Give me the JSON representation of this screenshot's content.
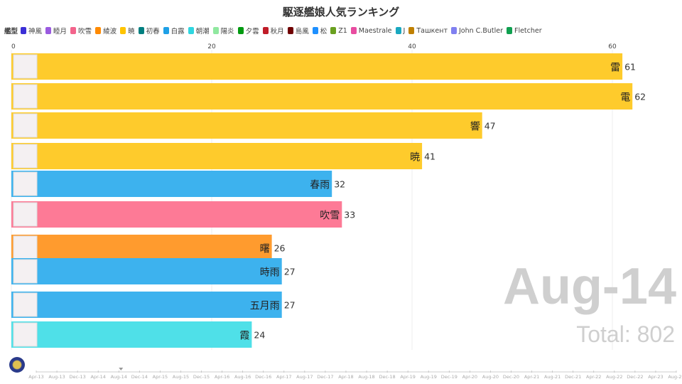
{
  "title": "駆逐艦娘人気ランキング",
  "legend_title": "艦型",
  "legend": [
    {
      "name": "神風",
      "color": "#3b2fd6"
    },
    {
      "name": "睦月",
      "color": "#9a5ae0"
    },
    {
      "name": "吹雪",
      "color": "#f3648c"
    },
    {
      "name": "綾波",
      "color": "#ff8a00"
    },
    {
      "name": "暁",
      "color": "#ffc400"
    },
    {
      "name": "初春",
      "color": "#007f80"
    },
    {
      "name": "白露",
      "color": "#1ea0e6"
    },
    {
      "name": "朝潮",
      "color": "#2fd6e0"
    },
    {
      "name": "陽炎",
      "color": "#90e8a0"
    },
    {
      "name": "夕雲",
      "color": "#009a10"
    },
    {
      "name": "秋月",
      "color": "#c01c28"
    },
    {
      "name": "島風",
      "color": "#700000"
    },
    {
      "name": "松",
      "color": "#1e90ff"
    },
    {
      "name": "Z1",
      "color": "#6aa020"
    },
    {
      "name": "Maestrale",
      "color": "#e84ca0"
    },
    {
      "name": "J",
      "color": "#1aa8c0"
    },
    {
      "name": "Ташкент",
      "color": "#c08000"
    },
    {
      "name": "John C.Butler",
      "color": "#8080f0"
    },
    {
      "name": "Fletcher",
      "color": "#10a050"
    }
  ],
  "date": "Aug-14",
  "total": "Total: 802",
  "timeline": [
    "Apr-13",
    "Aug-13",
    "Dec-13",
    "Apr-14",
    "Aug-14",
    "Dec-14",
    "Apr-15",
    "Aug-15",
    "Dec-15",
    "Apr-16",
    "Aug-16",
    "Dec-16",
    "Apr-17",
    "Aug-17",
    "Dec-17",
    "Apr-18",
    "Aug-18",
    "Dec-18",
    "Apr-19",
    "Aug-19",
    "Dec-19",
    "Apr-20",
    "Aug-20",
    "Dec-20",
    "Apr-21",
    "Aug-21",
    "Dec-21",
    "Apr-22",
    "Aug-22",
    "Dec-22",
    "Apr-23",
    "Aug-23"
  ],
  "chart_data": {
    "type": "bar",
    "orientation": "horizontal",
    "title": "駆逐艦娘人気ランキング",
    "xlim": [
      0,
      62
    ],
    "xticks": [
      0,
      20,
      40,
      60
    ],
    "grid": true,
    "legend_position": "top-left",
    "bars": [
      {
        "name": "雷",
        "value": 61,
        "class": "暁",
        "color": "#fecb2c"
      },
      {
        "name": "電",
        "value": 62,
        "class": "暁",
        "color": "#fecb2c"
      },
      {
        "name": "響",
        "value": 47,
        "class": "暁",
        "color": "#fecb2c"
      },
      {
        "name": "暁",
        "value": 41,
        "class": "暁",
        "color": "#fecb2c"
      },
      {
        "name": "春雨",
        "value": 32,
        "class": "白露",
        "color": "#3db2ee"
      },
      {
        "name": "吹雪",
        "value": 33,
        "class": "吹雪",
        "color": "#fd7a96"
      },
      {
        "name": "曙",
        "value": 26,
        "class": "綾波",
        "color": "#ff9b2e"
      },
      {
        "name": "時雨",
        "value": 27,
        "class": "白露",
        "color": "#3db2ee"
      },
      {
        "name": "五月雨",
        "value": 27,
        "class": "白露",
        "color": "#3db2ee"
      },
      {
        "name": "霞",
        "value": 24,
        "class": "朝潮",
        "color": "#4fe0e8"
      }
    ]
  }
}
